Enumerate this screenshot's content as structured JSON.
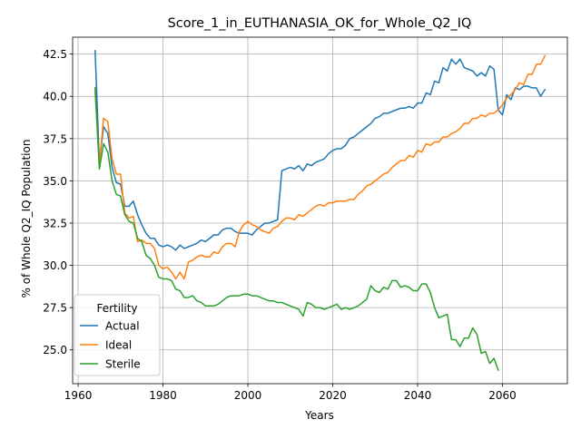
{
  "chart_data": {
    "type": "line",
    "title": "Score_1_in_EUTHANASIA_OK_for_Whole_Q2_IQ",
    "xlabel": "Years",
    "ylabel": "% of Whole Q2_IQ Population",
    "xlim": [
      1958.7,
      2075.3
    ],
    "ylim": [
      23.0,
      43.5
    ],
    "xticks": [
      1960,
      1980,
      2000,
      2020,
      2040,
      2060
    ],
    "yticks": [
      25.0,
      27.5,
      30.0,
      32.5,
      35.0,
      37.5,
      40.0,
      42.5
    ],
    "xtick_labels": [
      "1960",
      "1980",
      "2000",
      "2020",
      "2040",
      "2060"
    ],
    "ytick_labels": [
      "25.0",
      "27.5",
      "30.0",
      "32.5",
      "35.0",
      "37.5",
      "40.0",
      "42.5"
    ],
    "grid": true,
    "legend_title": "Fertility",
    "legend_position": "lower-left",
    "series": [
      {
        "name": "Actual",
        "color": "#1f77b4",
        "points": [
          [
            1964,
            42.7
          ],
          [
            1965,
            36.1
          ],
          [
            1966,
            38.2
          ],
          [
            1967,
            37.8
          ],
          [
            1968,
            35.8
          ],
          [
            1969,
            34.9
          ],
          [
            1970,
            34.8
          ],
          [
            1971,
            33.5
          ],
          [
            1972,
            33.5
          ],
          [
            1973,
            33.8
          ],
          [
            1974,
            33.0
          ],
          [
            1975,
            32.4
          ],
          [
            1976,
            31.9
          ],
          [
            1977,
            31.6
          ],
          [
            1978,
            31.6
          ],
          [
            1979,
            31.2
          ],
          [
            1980,
            31.1
          ],
          [
            1981,
            31.2
          ],
          [
            1982,
            31.1
          ],
          [
            1983,
            30.9
          ],
          [
            1984,
            31.2
          ],
          [
            1985,
            31.0
          ],
          [
            1986,
            31.1
          ],
          [
            1987,
            31.2
          ],
          [
            1988,
            31.3
          ],
          [
            1989,
            31.5
          ],
          [
            1990,
            31.4
          ],
          [
            1991,
            31.6
          ],
          [
            1992,
            31.8
          ],
          [
            1993,
            31.8
          ],
          [
            1994,
            32.1
          ],
          [
            1995,
            32.2
          ],
          [
            1996,
            32.2
          ],
          [
            1997,
            32.0
          ],
          [
            1998,
            31.9
          ],
          [
            1999,
            31.9
          ],
          [
            2000,
            31.9
          ],
          [
            2001,
            31.8
          ],
          [
            2002,
            32.1
          ],
          [
            2003,
            32.3
          ],
          [
            2004,
            32.5
          ],
          [
            2005,
            32.5
          ],
          [
            2006,
            32.6
          ],
          [
            2007,
            32.7
          ],
          [
            2008,
            35.6
          ],
          [
            2009,
            35.7
          ],
          [
            2010,
            35.8
          ],
          [
            2011,
            35.7
          ],
          [
            2012,
            35.9
          ],
          [
            2013,
            35.6
          ],
          [
            2014,
            36.0
          ],
          [
            2015,
            35.9
          ],
          [
            2016,
            36.1
          ],
          [
            2017,
            36.2
          ],
          [
            2018,
            36.3
          ],
          [
            2019,
            36.6
          ],
          [
            2020,
            36.8
          ],
          [
            2021,
            36.9
          ],
          [
            2022,
            36.9
          ],
          [
            2023,
            37.1
          ],
          [
            2024,
            37.5
          ],
          [
            2025,
            37.6
          ],
          [
            2026,
            37.8
          ],
          [
            2027,
            38.0
          ],
          [
            2028,
            38.2
          ],
          [
            2029,
            38.4
          ],
          [
            2030,
            38.7
          ],
          [
            2031,
            38.8
          ],
          [
            2032,
            39.0
          ],
          [
            2033,
            39.0
          ],
          [
            2034,
            39.1
          ],
          [
            2035,
            39.2
          ],
          [
            2036,
            39.3
          ],
          [
            2037,
            39.3
          ],
          [
            2038,
            39.4
          ],
          [
            2039,
            39.3
          ],
          [
            2040,
            39.6
          ],
          [
            2041,
            39.6
          ],
          [
            2042,
            40.2
          ],
          [
            2043,
            40.1
          ],
          [
            2044,
            40.9
          ],
          [
            2045,
            40.8
          ],
          [
            2046,
            41.7
          ],
          [
            2047,
            41.5
          ],
          [
            2048,
            42.2
          ],
          [
            2049,
            41.9
          ],
          [
            2050,
            42.2
          ],
          [
            2051,
            41.7
          ],
          [
            2052,
            41.6
          ],
          [
            2053,
            41.5
          ],
          [
            2054,
            41.2
          ],
          [
            2055,
            41.4
          ],
          [
            2056,
            41.2
          ],
          [
            2057,
            41.8
          ],
          [
            2058,
            41.6
          ],
          [
            2059,
            39.2
          ],
          [
            2060,
            38.9
          ],
          [
            2061,
            40.1
          ],
          [
            2062,
            39.8
          ],
          [
            2063,
            40.5
          ],
          [
            2064,
            40.4
          ],
          [
            2065,
            40.6
          ],
          [
            2066,
            40.6
          ],
          [
            2067,
            40.5
          ],
          [
            2068,
            40.5
          ],
          [
            2069,
            40.0
          ],
          [
            2070,
            40.4
          ]
        ]
      },
      {
        "name": "Ideal",
        "color": "#ff7f0e",
        "points": [
          [
            1964,
            40.3
          ],
          [
            1965,
            36.0
          ],
          [
            1966,
            38.7
          ],
          [
            1967,
            38.5
          ],
          [
            1968,
            36.3
          ],
          [
            1969,
            35.4
          ],
          [
            1970,
            35.4
          ],
          [
            1971,
            33.1
          ],
          [
            1972,
            32.8
          ],
          [
            1973,
            32.9
          ],
          [
            1974,
            31.4
          ],
          [
            1975,
            31.5
          ],
          [
            1976,
            31.3
          ],
          [
            1977,
            31.3
          ],
          [
            1978,
            31.0
          ],
          [
            1979,
            30.0
          ],
          [
            1980,
            29.8
          ],
          [
            1981,
            29.9
          ],
          [
            1982,
            29.6
          ],
          [
            1983,
            29.2
          ],
          [
            1984,
            29.6
          ],
          [
            1985,
            29.2
          ],
          [
            1986,
            30.2
          ],
          [
            1987,
            30.3
          ],
          [
            1988,
            30.5
          ],
          [
            1989,
            30.6
          ],
          [
            1990,
            30.5
          ],
          [
            1991,
            30.5
          ],
          [
            1992,
            30.8
          ],
          [
            1993,
            30.7
          ],
          [
            1994,
            31.1
          ],
          [
            1995,
            31.3
          ],
          [
            1996,
            31.3
          ],
          [
            1997,
            31.1
          ],
          [
            1998,
            32.0
          ],
          [
            1999,
            32.4
          ],
          [
            2000,
            32.6
          ],
          [
            2001,
            32.4
          ],
          [
            2002,
            32.3
          ],
          [
            2003,
            32.1
          ],
          [
            2004,
            32.0
          ],
          [
            2005,
            31.9
          ],
          [
            2006,
            32.2
          ],
          [
            2007,
            32.3
          ],
          [
            2008,
            32.6
          ],
          [
            2009,
            32.8
          ],
          [
            2010,
            32.8
          ],
          [
            2011,
            32.7
          ],
          [
            2012,
            33.0
          ],
          [
            2013,
            32.9
          ],
          [
            2014,
            33.1
          ],
          [
            2015,
            33.3
          ],
          [
            2016,
            33.5
          ],
          [
            2017,
            33.6
          ],
          [
            2018,
            33.5
          ],
          [
            2019,
            33.7
          ],
          [
            2020,
            33.7
          ],
          [
            2021,
            33.8
          ],
          [
            2022,
            33.8
          ],
          [
            2023,
            33.8
          ],
          [
            2024,
            33.9
          ],
          [
            2025,
            33.9
          ],
          [
            2026,
            34.2
          ],
          [
            2027,
            34.4
          ],
          [
            2028,
            34.7
          ],
          [
            2029,
            34.8
          ],
          [
            2030,
            35.0
          ],
          [
            2031,
            35.2
          ],
          [
            2032,
            35.4
          ],
          [
            2033,
            35.5
          ],
          [
            2034,
            35.8
          ],
          [
            2035,
            36.0
          ],
          [
            2036,
            36.2
          ],
          [
            2037,
            36.2
          ],
          [
            2038,
            36.5
          ],
          [
            2039,
            36.4
          ],
          [
            2040,
            36.8
          ],
          [
            2041,
            36.7
          ],
          [
            2042,
            37.2
          ],
          [
            2043,
            37.1
          ],
          [
            2044,
            37.3
          ],
          [
            2045,
            37.3
          ],
          [
            2046,
            37.6
          ],
          [
            2047,
            37.6
          ],
          [
            2048,
            37.8
          ],
          [
            2049,
            37.9
          ],
          [
            2050,
            38.1
          ],
          [
            2051,
            38.4
          ],
          [
            2052,
            38.4
          ],
          [
            2053,
            38.7
          ],
          [
            2054,
            38.7
          ],
          [
            2055,
            38.9
          ],
          [
            2056,
            38.8
          ],
          [
            2057,
            39.0
          ],
          [
            2058,
            39.0
          ],
          [
            2059,
            39.2
          ],
          [
            2060,
            39.5
          ],
          [
            2061,
            39.9
          ],
          [
            2062,
            40.1
          ],
          [
            2063,
            40.4
          ],
          [
            2064,
            40.8
          ],
          [
            2065,
            40.7
          ],
          [
            2066,
            41.3
          ],
          [
            2067,
            41.3
          ],
          [
            2068,
            41.9
          ],
          [
            2069,
            41.9
          ],
          [
            2070,
            42.4
          ]
        ]
      },
      {
        "name": "Sterile",
        "color": "#2ca02c",
        "points": [
          [
            1964,
            40.5
          ],
          [
            1965,
            35.7
          ],
          [
            1966,
            37.2
          ],
          [
            1967,
            36.7
          ],
          [
            1968,
            35.0
          ],
          [
            1969,
            34.2
          ],
          [
            1970,
            34.1
          ],
          [
            1971,
            33.0
          ],
          [
            1972,
            32.6
          ],
          [
            1973,
            32.5
          ],
          [
            1974,
            31.6
          ],
          [
            1975,
            31.4
          ],
          [
            1976,
            30.6
          ],
          [
            1977,
            30.4
          ],
          [
            1978,
            30.0
          ],
          [
            1979,
            29.3
          ],
          [
            1980,
            29.2
          ],
          [
            1981,
            29.2
          ],
          [
            1982,
            29.1
          ],
          [
            1983,
            28.6
          ],
          [
            1984,
            28.5
          ],
          [
            1985,
            28.1
          ],
          [
            1986,
            28.1
          ],
          [
            1987,
            28.2
          ],
          [
            1988,
            27.9
          ],
          [
            1989,
            27.8
          ],
          [
            1990,
            27.6
          ],
          [
            1991,
            27.6
          ],
          [
            1992,
            27.6
          ],
          [
            1993,
            27.7
          ],
          [
            1994,
            27.9
          ],
          [
            1995,
            28.1
          ],
          [
            1996,
            28.2
          ],
          [
            1997,
            28.2
          ],
          [
            1998,
            28.2
          ],
          [
            1999,
            28.3
          ],
          [
            2000,
            28.3
          ],
          [
            2001,
            28.2
          ],
          [
            2002,
            28.2
          ],
          [
            2003,
            28.1
          ],
          [
            2004,
            28.0
          ],
          [
            2005,
            27.9
          ],
          [
            2006,
            27.9
          ],
          [
            2007,
            27.8
          ],
          [
            2008,
            27.8
          ],
          [
            2009,
            27.7
          ],
          [
            2010,
            27.6
          ],
          [
            2011,
            27.5
          ],
          [
            2012,
            27.4
          ],
          [
            2013,
            27.0
          ],
          [
            2014,
            27.8
          ],
          [
            2015,
            27.7
          ],
          [
            2016,
            27.5
          ],
          [
            2017,
            27.5
          ],
          [
            2018,
            27.4
          ],
          [
            2019,
            27.5
          ],
          [
            2020,
            27.6
          ],
          [
            2021,
            27.7
          ],
          [
            2022,
            27.4
          ],
          [
            2023,
            27.5
          ],
          [
            2024,
            27.4
          ],
          [
            2025,
            27.5
          ],
          [
            2026,
            27.6
          ],
          [
            2027,
            27.8
          ],
          [
            2028,
            28.0
          ],
          [
            2029,
            28.8
          ],
          [
            2030,
            28.5
          ],
          [
            2031,
            28.4
          ],
          [
            2032,
            28.7
          ],
          [
            2033,
            28.6
          ],
          [
            2034,
            29.1
          ],
          [
            2035,
            29.1
          ],
          [
            2036,
            28.7
          ],
          [
            2037,
            28.8
          ],
          [
            2038,
            28.7
          ],
          [
            2039,
            28.5
          ],
          [
            2040,
            28.5
          ],
          [
            2041,
            28.9
          ],
          [
            2042,
            28.9
          ],
          [
            2043,
            28.4
          ],
          [
            2044,
            27.5
          ],
          [
            2045,
            26.9
          ],
          [
            2046,
            27.0
          ],
          [
            2047,
            27.1
          ],
          [
            2048,
            25.6
          ],
          [
            2049,
            25.6
          ],
          [
            2050,
            25.2
          ],
          [
            2051,
            25.7
          ],
          [
            2052,
            25.7
          ],
          [
            2053,
            26.3
          ],
          [
            2054,
            25.9
          ],
          [
            2055,
            24.8
          ],
          [
            2056,
            24.9
          ],
          [
            2057,
            24.2
          ],
          [
            2058,
            24.5
          ],
          [
            2059,
            23.8
          ]
        ]
      }
    ]
  }
}
